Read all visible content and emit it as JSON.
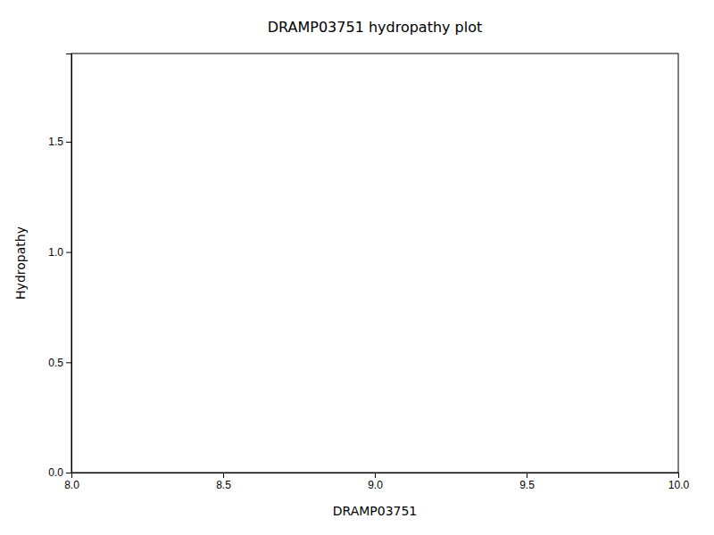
{
  "chart_data": {
    "type": "line",
    "title": "DRAMP03751 hydropathy plot",
    "x_label": "DRAMP03751",
    "y_label": "Hydropathy",
    "xlim": [
      8.0,
      10.0
    ],
    "ylim": [
      0.0,
      1.9
    ],
    "xticks": [
      {
        "value": 8.0,
        "label": "8.0"
      },
      8.5,
      {
        "value": 9.0,
        "label": "9.0"
      },
      9.5,
      {
        "value": 10.0,
        "label": "10.0"
      }
    ],
    "yticks": [
      {
        "value": 0.0,
        "label": "0.0"
      },
      0.5,
      {
        "value": 1.0,
        "label": "1.0"
      },
      1.5
    ]
  }
}
